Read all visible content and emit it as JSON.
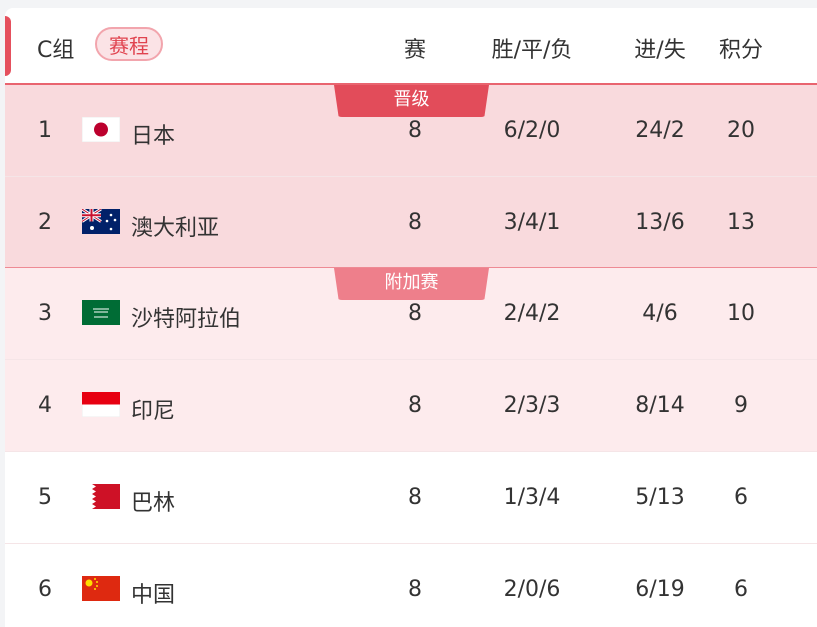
{
  "header": {
    "group": "C组",
    "schedule": "赛程",
    "cols": [
      "赛",
      "胜/平/负",
      "进/失",
      "积分"
    ]
  },
  "zones": {
    "promote": "晋级",
    "playoff": "附加赛"
  },
  "colors": {
    "accent": "#e5505d",
    "promote_bg": "#f9dadd",
    "playoff_bg": "#fdebed",
    "promote_tag": "#e24c5a",
    "playoff_tag": "#ee7f8b"
  },
  "rows": [
    {
      "rank": "1",
      "team": "日本",
      "flag": "japan-flag",
      "played": "8",
      "wdl": "6/2/0",
      "gf_ga": "24/2",
      "pts": "20"
    },
    {
      "rank": "2",
      "team": "澳大利亚",
      "flag": "australia-flag",
      "played": "8",
      "wdl": "3/4/1",
      "gf_ga": "13/6",
      "pts": "13"
    },
    {
      "rank": "3",
      "team": "沙特阿拉伯",
      "flag": "saudi-arabia-flag",
      "played": "8",
      "wdl": "2/4/2",
      "gf_ga": "4/6",
      "pts": "10"
    },
    {
      "rank": "4",
      "team": "印尼",
      "flag": "indonesia-flag",
      "played": "8",
      "wdl": "2/3/3",
      "gf_ga": "8/14",
      "pts": "9"
    },
    {
      "rank": "5",
      "team": "巴林",
      "flag": "bahrain-flag",
      "played": "8",
      "wdl": "1/3/4",
      "gf_ga": "5/13",
      "pts": "6"
    },
    {
      "rank": "6",
      "team": "中国",
      "flag": "china-flag",
      "played": "8",
      "wdl": "2/0/6",
      "gf_ga": "6/19",
      "pts": "6"
    }
  ]
}
